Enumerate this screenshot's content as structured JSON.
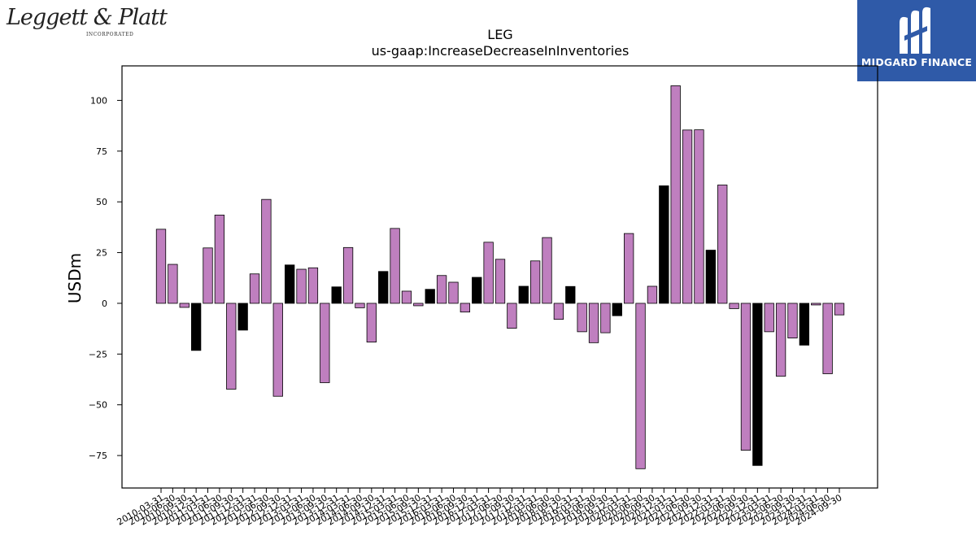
{
  "logos": {
    "left_wordmark": "Leggett & Platt",
    "left_subtext": "INCORPORATED",
    "right_brand": "MIDGARD FINANCE"
  },
  "colors": {
    "bar_default": "#bf7fbf",
    "bar_highlight": "#000000",
    "brand_blue": "#2f5aa8"
  },
  "chart_data": {
    "type": "bar",
    "title": "LEG",
    "subtitle": "us-gaap:IncreaseDecreaseInInventories",
    "xlabel": "",
    "ylabel": "USDm",
    "ylim": [
      -91,
      117
    ],
    "yticks": [
      -75,
      -50,
      -25,
      0,
      25,
      50,
      75,
      100
    ],
    "grid": false,
    "categories": [
      "2010-03-31",
      "2010-06-30",
      "2010-09-30",
      "2010-12-31",
      "2011-03-31",
      "2011-06-30",
      "2011-09-30",
      "2011-12-31",
      "2012-03-31",
      "2012-06-30",
      "2012-09-30",
      "2012-12-31",
      "2013-03-31",
      "2013-06-30",
      "2013-09-30",
      "2013-12-31",
      "2014-03-31",
      "2014-06-30",
      "2014-09-30",
      "2014-12-31",
      "2015-03-31",
      "2015-06-30",
      "2015-09-30",
      "2015-12-31",
      "2016-03-31",
      "2016-06-30",
      "2016-09-30",
      "2016-12-31",
      "2017-03-31",
      "2017-06-30",
      "2017-09-30",
      "2017-12-31",
      "2018-03-31",
      "2018-06-30",
      "2018-09-30",
      "2018-12-31",
      "2019-03-31",
      "2019-06-30",
      "2019-09-30",
      "2019-12-31",
      "2020-03-31",
      "2020-06-30",
      "2020-09-30",
      "2020-12-31",
      "2021-03-31",
      "2021-06-30",
      "2021-09-30",
      "2021-12-31",
      "2022-03-31",
      "2022-06-30",
      "2022-09-30",
      "2022-12-31",
      "2023-03-31",
      "2023-06-30",
      "2023-09-30",
      "2023-12-31",
      "2024-03-31",
      "2024-06-30",
      "2024-09-30"
    ],
    "values": [
      36.5,
      19.2,
      -2.0,
      -23.2,
      27.3,
      43.5,
      -42.3,
      -13.2,
      14.5,
      51.2,
      -45.8,
      18.9,
      16.8,
      17.5,
      -39.1,
      8.1,
      27.5,
      -2.2,
      -19.1,
      15.7,
      36.9,
      6.0,
      -1.2,
      6.9,
      13.7,
      10.4,
      -4.3,
      12.8,
      30.1,
      21.7,
      -12.3,
      8.4,
      20.9,
      32.4,
      -7.9,
      8.3,
      -14.0,
      -19.4,
      -14.5,
      -6.1,
      34.4,
      -81.5,
      8.4,
      57.9,
      107.2,
      85.4,
      85.5,
      26.2,
      58.3,
      -2.6,
      -72.4,
      -79.9,
      -14.0,
      -35.9,
      -17.1,
      -20.6,
      -0.8,
      -34.7,
      -5.7
    ],
    "highlight_indices": [
      3,
      7,
      11,
      15,
      19,
      23,
      27,
      31,
      35,
      39,
      43,
      47,
      51,
      55
    ]
  }
}
